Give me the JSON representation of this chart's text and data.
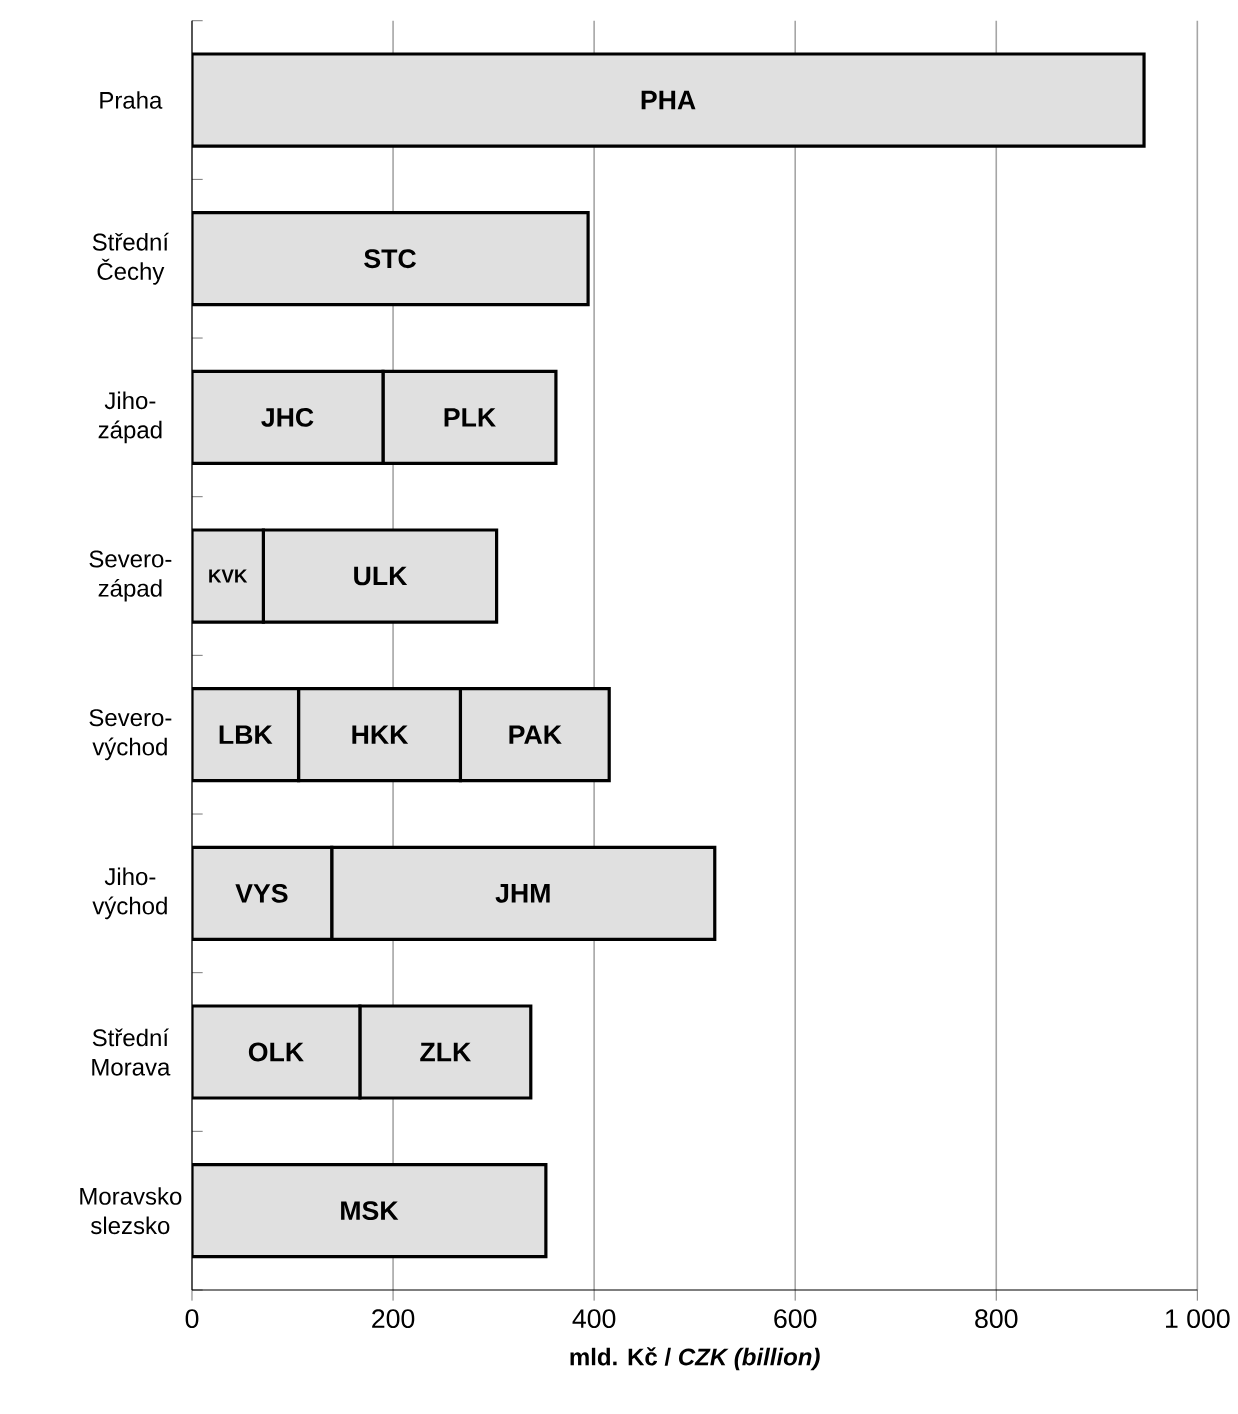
{
  "chart_data": {
    "type": "bar",
    "orientation": "horizontal",
    "stacked": true,
    "categories": [
      "Praha",
      "Střední Čechy",
      "Jiho-západ",
      "Severo-západ",
      "Severo-východ",
      "Jiho-východ",
      "Střední Morava",
      "Moravsko slezsko"
    ],
    "series": [
      {
        "color": "#e0e0e0",
        "values": [
          947,
          394,
          190,
          71,
          106,
          139,
          167,
          352
        ],
        "value_labels": [
          "PHA",
          "STC",
          "JHC",
          "KVK",
          "LBK",
          "VYS",
          "OLK",
          "MSK"
        ]
      },
      {
        "color": "#e0e0e0",
        "values": [
          null,
          null,
          172,
          232,
          161,
          381,
          170,
          null
        ],
        "value_labels": [
          null,
          null,
          "PLK",
          "ULK",
          "HKK",
          "JHM",
          "ZLK",
          null
        ]
      },
      {
        "color": "#e0e0e0",
        "values": [
          null,
          null,
          null,
          null,
          148,
          null,
          null,
          null
        ],
        "value_labels": [
          null,
          null,
          null,
          null,
          "PAK",
          null,
          null,
          null
        ]
      }
    ],
    "xlim": [
      0,
      1000
    ],
    "xticks": [
      0,
      200,
      400,
      600,
      800,
      {
        "value": 1000,
        "label": "1 000"
      }
    ],
    "xlabel": "mld. Kč / *CZK (billion)*",
    "grid": "x"
  }
}
